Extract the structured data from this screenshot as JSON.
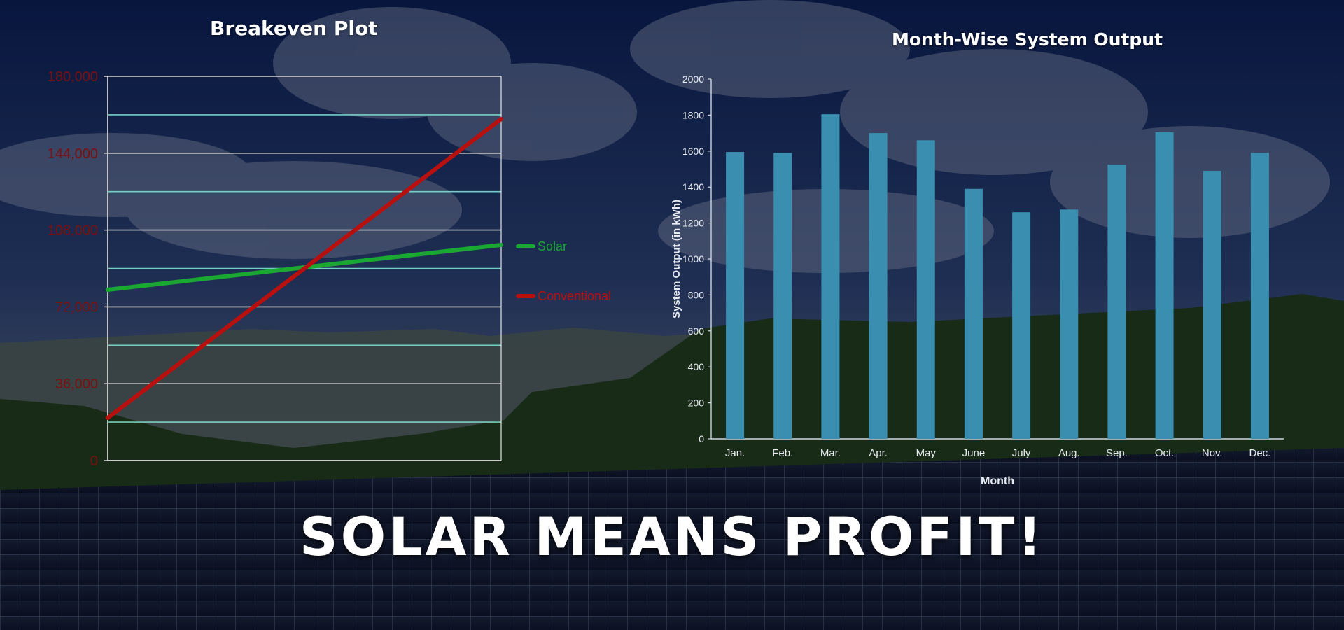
{
  "headline": "SOLAR MEANS PROFIT!",
  "colors": {
    "solar_line": "#1aa832",
    "conventional_line": "#b8100e",
    "bar_fill": "#3a8fb0",
    "left_tick_label": "#7a1010",
    "sky_top": "#0b1e4e",
    "grass": "#203a18"
  },
  "chart_data": [
    {
      "type": "line",
      "title": "Breakeven Plot",
      "xlabel": "",
      "ylabel": "",
      "ylim": [
        0,
        180000
      ],
      "yticks": [
        0,
        36000,
        72000,
        108000,
        144000,
        180000
      ],
      "ytick_labels": [
        "0",
        "36,000",
        "72,000",
        "108,000",
        "144,000",
        "180,000"
      ],
      "grid": true,
      "legend": "right",
      "series": [
        {
          "name": "Solar",
          "x": [
            0,
            1
          ],
          "values": [
            80000,
            101000
          ]
        },
        {
          "name": "Conventional",
          "x": [
            0,
            1
          ],
          "values": [
            20000,
            160000
          ]
        }
      ]
    },
    {
      "type": "bar",
      "title": "Month-Wise System Output",
      "xlabel": "Month",
      "ylabel": "System Output (in kWh)",
      "ylim": [
        0,
        2000
      ],
      "yticks": [
        0,
        200,
        400,
        600,
        800,
        1000,
        1200,
        1400,
        1600,
        1800,
        2000
      ],
      "grid": false,
      "categories": [
        "Jan.",
        "Feb.",
        "Mar.",
        "Apr.",
        "May",
        "June",
        "July",
        "Aug.",
        "Sep.",
        "Oct.",
        "Nov.",
        "Dec."
      ],
      "values": [
        1595,
        1590,
        1805,
        1700,
        1660,
        1390,
        1260,
        1275,
        1525,
        1705,
        1490,
        1590
      ]
    }
  ]
}
